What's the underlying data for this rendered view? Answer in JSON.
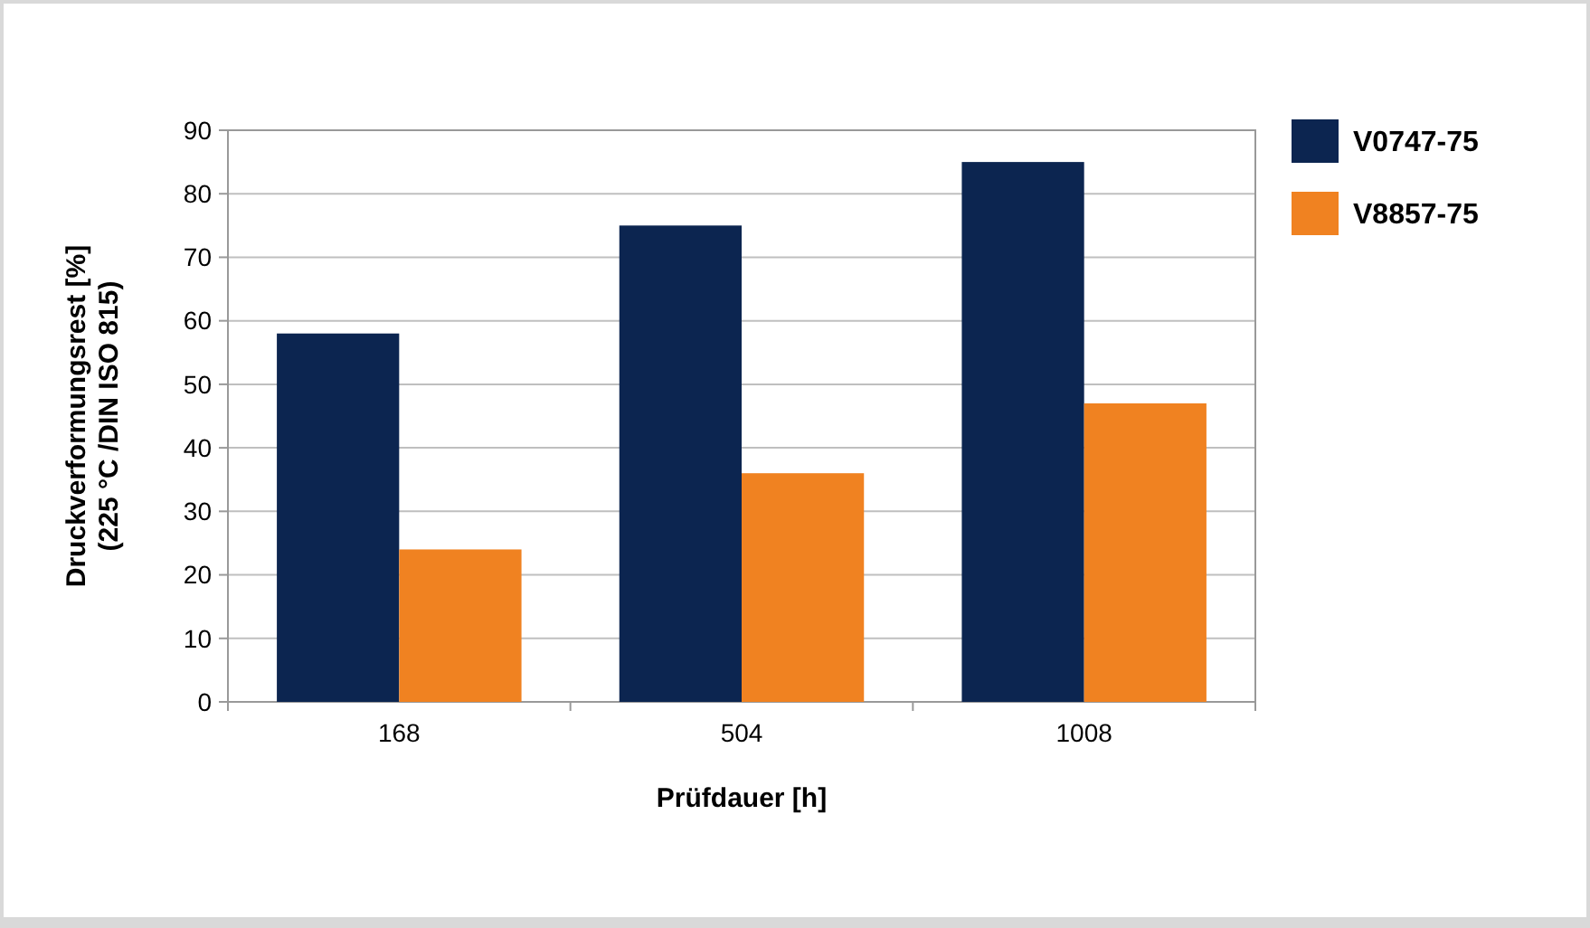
{
  "chart_data": {
    "type": "bar",
    "xlabel": "Prüfdauer [h]",
    "ylabel": "Druckverformungsrest [%]\n(225 °C /DIN ISO 815)",
    "categories": [
      "168",
      "504",
      "1008"
    ],
    "series": [
      {
        "name": "V0747-75",
        "color": "#0c2550",
        "values": [
          58,
          75,
          85
        ]
      },
      {
        "name": "V8857-75",
        "color": "#f08221",
        "values": [
          24,
          36,
          47
        ]
      }
    ],
    "ylim": [
      0,
      90
    ],
    "yticks": [
      0,
      10,
      20,
      30,
      40,
      50,
      60,
      70,
      80,
      90
    ],
    "grid": "y",
    "legend": "right"
  }
}
